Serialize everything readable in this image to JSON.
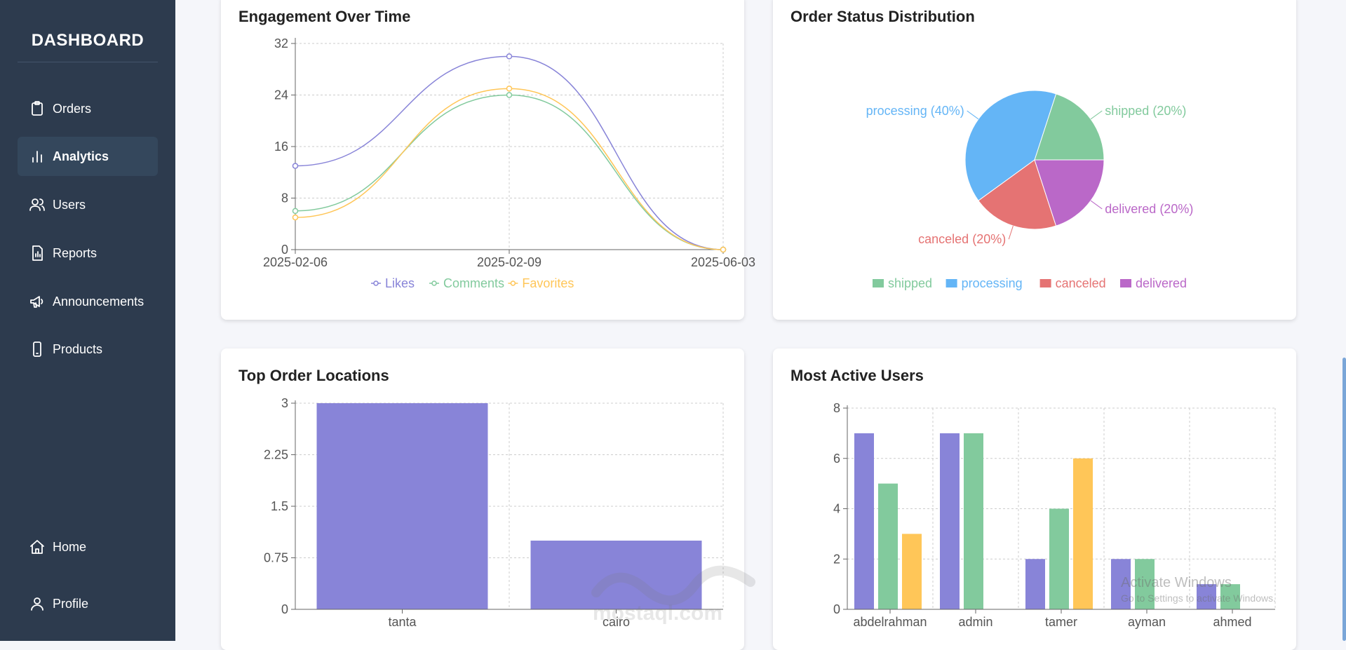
{
  "sidebar": {
    "brand": "DASHBOARD",
    "items": [
      {
        "label": "Orders",
        "icon": "clipboard-icon"
      },
      {
        "label": "Analytics",
        "icon": "bar-chart-icon",
        "active": true
      },
      {
        "label": "Users",
        "icon": "users-icon"
      },
      {
        "label": "Reports",
        "icon": "report-icon"
      },
      {
        "label": "Announcements",
        "icon": "megaphone-icon"
      },
      {
        "label": "Products",
        "icon": "phone-icon"
      }
    ],
    "bottom_items": [
      {
        "label": "Home",
        "icon": "home-icon"
      },
      {
        "label": "Profile",
        "icon": "user-icon"
      }
    ]
  },
  "colors": {
    "sidebar_bg": "#2d3b4e",
    "purple": "#8884d8",
    "green": "#82ca9d",
    "yellow": "#ffc658",
    "blue": "#64b5f6",
    "red": "#e57373",
    "violet": "#ba68c8"
  },
  "cards": {
    "engagement_title": "Engagement Over Time",
    "order_status_title": "Order Status Distribution",
    "locations_title": "Top Order Locations",
    "active_users_title": "Most Active Users"
  },
  "chart_data": [
    {
      "type": "line",
      "title": "Engagement Over Time",
      "x": [
        "2025-02-06",
        "2025-02-09",
        "2025-06-03"
      ],
      "series": [
        {
          "name": "Likes",
          "values": [
            13,
            30,
            0
          ],
          "color": "#8884d8"
        },
        {
          "name": "Comments",
          "values": [
            6,
            24,
            0
          ],
          "color": "#82ca9d"
        },
        {
          "name": "Favorites",
          "values": [
            5,
            25,
            0
          ],
          "color": "#ffc658"
        }
      ],
      "y_ticks": [
        "0",
        "8",
        "16",
        "24",
        "32"
      ],
      "ylim": [
        0,
        32
      ],
      "grid": true,
      "legend": "bottom"
    },
    {
      "type": "pie",
      "title": "Order Status Distribution",
      "slices": [
        {
          "name": "shipped",
          "value": 20,
          "label": "shipped (20%)",
          "color": "#82ca9d"
        },
        {
          "name": "processing",
          "value": 40,
          "label": "processing (40%)",
          "color": "#64b5f6"
        },
        {
          "name": "canceled",
          "value": 20,
          "label": "canceled (20%)",
          "color": "#e57373"
        },
        {
          "name": "delivered",
          "value": 20,
          "label": "delivered (20%)",
          "color": "#ba68c8"
        }
      ],
      "legend": "bottom"
    },
    {
      "type": "bar",
      "title": "Top Order Locations",
      "categories": [
        "tanta",
        "cairo"
      ],
      "values": [
        3,
        1
      ],
      "y_ticks": [
        "0",
        "0.75",
        "1.5",
        "2.25",
        "3"
      ],
      "ylim": [
        0,
        3
      ],
      "color": "#8884d8",
      "grid": true
    },
    {
      "type": "bar",
      "title": "Most Active Users",
      "categories": [
        "abdelrahman",
        "admin",
        "tamer",
        "ayman",
        "ahmed"
      ],
      "series": [
        {
          "values": [
            7,
            7,
            2,
            2,
            1
          ],
          "color": "#8884d8"
        },
        {
          "values": [
            5,
            7,
            4,
            2,
            1
          ],
          "color": "#82ca9d"
        },
        {
          "values": [
            3,
            0,
            6,
            0,
            0
          ],
          "color": "#ffc658"
        }
      ],
      "y_ticks": [
        "0",
        "2",
        "4",
        "6",
        "8"
      ],
      "ylim": [
        0,
        8
      ],
      "grid": true
    }
  ],
  "watermark": {
    "logo": "مستقل",
    "text": "mostaql.com"
  },
  "activation": {
    "line1": "Activate Windows",
    "line2": "Go to Settings to activate Windows."
  }
}
